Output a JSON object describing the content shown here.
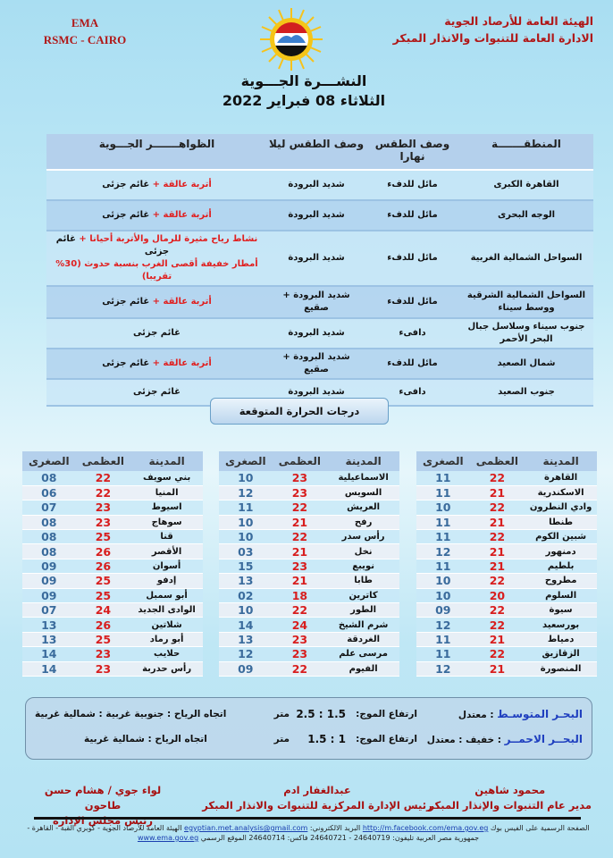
{
  "header": {
    "org_ar_line1": "الهيئة العامة للأرصاد الجوية",
    "org_ar_line2": "الادارة العامة للتنبوات والانذار المبكر",
    "org_en_line1": "EMA",
    "org_en_line2": "RSMC - CAIRO",
    "logo_text": "EMA",
    "title": "النشـــرة الجـــوية",
    "date": "الثلاثاء 08 فبراير 2022"
  },
  "forecast_table": {
    "headers": [
      "المنطقـــــــة",
      "وصف الطقس نهارا",
      "وصف الطقس ليلا",
      "الظواهـــــــر الجـــوية"
    ],
    "rows": [
      {
        "region": "القاهرة الكبرى",
        "day": "مائل للدفء",
        "night": "شديد البرودة",
        "phen_red": "أتربة عالقة +",
        "phen_black": "غائم جزئى",
        "phen_red2": ""
      },
      {
        "region": "الوجه البحرى",
        "day": "مائل للدفء",
        "night": "شديد البرودة",
        "phen_red": "أتربة عالقة +",
        "phen_black": "غائم جزئى",
        "phen_red2": ""
      },
      {
        "region": "السواحل الشمالية الغربية",
        "day": "مائل للدفء",
        "night": "شديد البرودة",
        "phen_red": "نشاط رياح مثيرة للرمال والأتربة أحيانا +",
        "phen_black": "غائم جزئى",
        "phen_red2": "أمطار خفيفة أقصى الغرب بنسبة حدوث (30% تقريبا)"
      },
      {
        "region": "السواحل الشمالية الشرقية ووسط سيناء",
        "day": "مائل للدفء",
        "night": "شديد البرودة + صقيع",
        "phen_red": "أتربة عالقة +",
        "phen_black": "غائم جزئى",
        "phen_red2": ""
      },
      {
        "region": "جنوب سيناء وسلاسل جبال البحر الأحمر",
        "day": "دافىء",
        "night": "شديد البرودة",
        "phen_red": "",
        "phen_black": "غائم جزئى",
        "phen_red2": ""
      },
      {
        "region": "شمال الصعيد",
        "day": "مائل للدفء",
        "night": "شديد البرودة + صقيع",
        "phen_red": "أتربة عالقة +",
        "phen_black": "غائم جزئى",
        "phen_red2": ""
      },
      {
        "region": "جنوب الصعيد",
        "day": "دافىء",
        "night": "شديد البرودة",
        "phen_red": "",
        "phen_black": "غائم جزئى",
        "phen_red2": ""
      }
    ]
  },
  "temperature": {
    "heading": "درجات الحرارة المتوقعة",
    "headers": [
      "المدينة",
      "العظمى",
      "الصغرى"
    ],
    "tables": [
      [
        [
          "القاهرة",
          "22",
          "11"
        ],
        [
          "الاسكندرية",
          "21",
          "11"
        ],
        [
          "وادي النطرون",
          "22",
          "10"
        ],
        [
          "طنطا",
          "21",
          "11"
        ],
        [
          "شبين الكوم",
          "22",
          "11"
        ],
        [
          "دمنهور",
          "21",
          "12"
        ],
        [
          "بلطيم",
          "21",
          "11"
        ],
        [
          "مطروح",
          "22",
          "10"
        ],
        [
          "السلوم",
          "20",
          "10"
        ],
        [
          "سيوة",
          "22",
          "09"
        ],
        [
          "بورسعيد",
          "22",
          "12"
        ],
        [
          "دمياط",
          "21",
          "11"
        ],
        [
          "الزقازيق",
          "22",
          "11"
        ],
        [
          "المنصورة",
          "21",
          "12"
        ]
      ],
      [
        [
          "الاسماعيلية",
          "23",
          "10"
        ],
        [
          "السويس",
          "23",
          "12"
        ],
        [
          "العريش",
          "22",
          "11"
        ],
        [
          "رفح",
          "21",
          "10"
        ],
        [
          "رأس سدر",
          "22",
          "10"
        ],
        [
          "نخل",
          "21",
          "03"
        ],
        [
          "نويبع",
          "23",
          "15"
        ],
        [
          "طابا",
          "21",
          "13"
        ],
        [
          "كاترين",
          "18",
          "02"
        ],
        [
          "الطور",
          "22",
          "10"
        ],
        [
          "شرم الشيخ",
          "24",
          "14"
        ],
        [
          "الغردقة",
          "23",
          "13"
        ],
        [
          "مرسى علم",
          "23",
          "12"
        ],
        [
          "الفيوم",
          "22",
          "09"
        ]
      ],
      [
        [
          "بني سويف",
          "22",
          "08"
        ],
        [
          "المنيا",
          "22",
          "06"
        ],
        [
          "اسيوط",
          "23",
          "07"
        ],
        [
          "سوهاج",
          "23",
          "08"
        ],
        [
          "قنا",
          "25",
          "08"
        ],
        [
          "الأقصر",
          "26",
          "08"
        ],
        [
          "أسوان",
          "26",
          "09"
        ],
        [
          "إدفو",
          "25",
          "09"
        ],
        [
          "أبو سمبل",
          "25",
          "09"
        ],
        [
          "الوادى الجديد",
          "24",
          "07"
        ],
        [
          "شلاتين",
          "26",
          "13"
        ],
        [
          "أبو رماد",
          "25",
          "13"
        ],
        [
          "حلايب",
          "23",
          "14"
        ],
        [
          "رأس حدربة",
          "23",
          "14"
        ]
      ]
    ]
  },
  "sea": {
    "med": {
      "name": "البحـر المتوسـط",
      "state": ": معتدل",
      "wave_label": "ارتفاع الموج:",
      "wave_value": "1.5 : 2.5",
      "unit": "متر",
      "wind": "اتجاه الرياح : جنوبية غربية : شمالية غربية"
    },
    "red": {
      "name": "البحــر الاحمــر",
      "state": ":  خفيف : معتدل",
      "wave_label": "ارتفاع الموج:",
      "wave_value": "1 : 1.5",
      "unit": "متر",
      "wind": "اتجاه الرياح :  شمالية غربية"
    }
  },
  "signatures": [
    {
      "name": "محمود شاهين",
      "title": "مدير عام التنبوات والإنذار المبكر"
    },
    {
      "name": "عبدالغفار ادم",
      "title": "رئيس الإدارة المركزية للتنبوات والانذار المبكر"
    },
    {
      "name": "لواء جوي / هشام حسن طاحون",
      "title": "رئيس مجلس الإدارة"
    }
  ],
  "footer": {
    "text1": "الصفحة الرسمية على الفيس بوك",
    "facebook": "http://m.facebook.com/ema.gov.eg",
    "text2": "البريد الالكتروني:",
    "email": "egyptian.met.analysis@gmail.com",
    "text3": "الهيئة العامة للأرصاد الجوية - كوبري القبة - القاهرة - جمهورية مصر العربية تليفون: 24640719 - 24640721 فاكس: 24640714 الموقع الرسمي",
    "website": "www.ema.gov.eg"
  },
  "colors": {
    "org_red": "#b01818",
    "phen_red": "#e02020",
    "max_red": "#d81e1e",
    "min_blue": "#3a6b9c",
    "sea_blue": "#1f3fbf"
  }
}
